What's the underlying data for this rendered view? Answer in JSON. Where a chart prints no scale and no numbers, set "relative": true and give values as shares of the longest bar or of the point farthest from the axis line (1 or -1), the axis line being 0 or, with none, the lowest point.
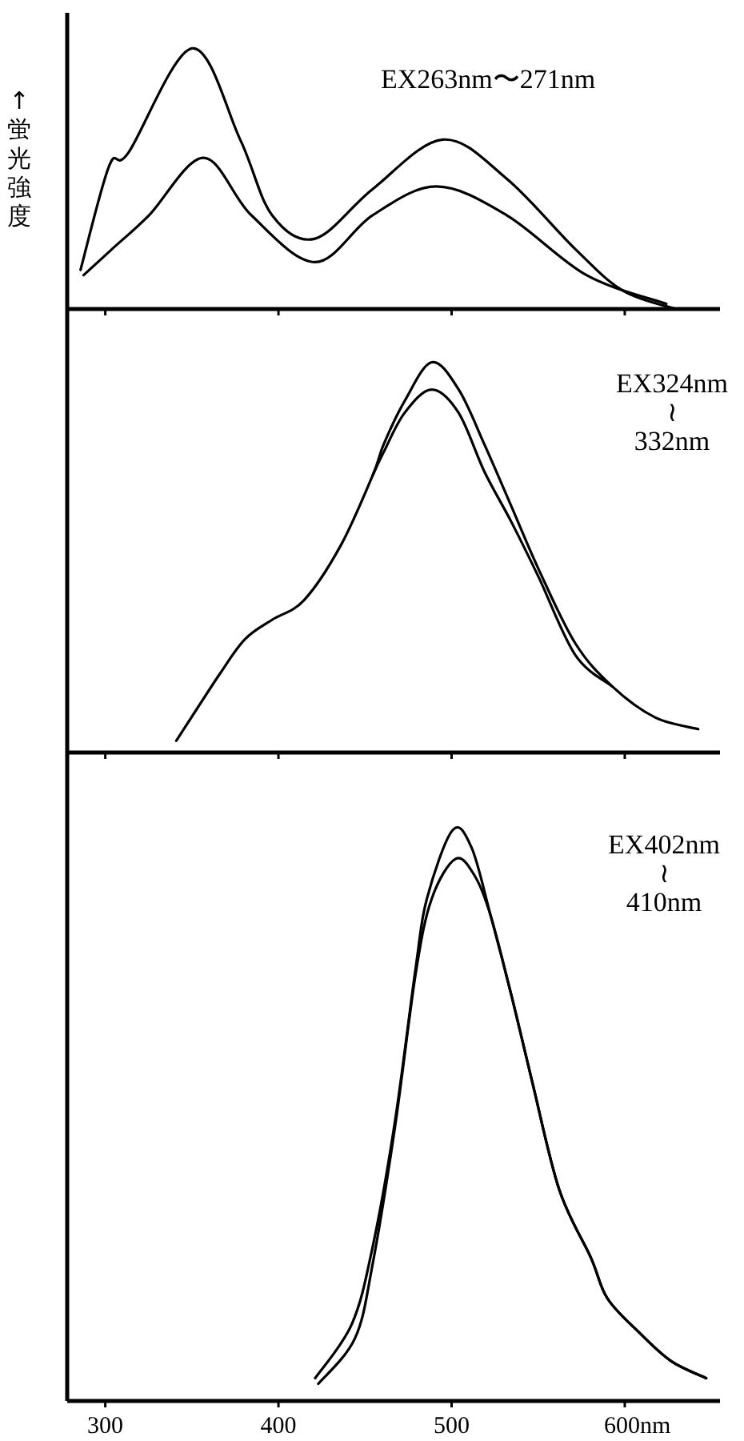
{
  "chart_data": [
    {
      "type": "line",
      "relative": true,
      "ylabel": "↑蛍光強度",
      "annotations": [
        "EX263nm〜271nm"
      ],
      "xlim": [
        278,
        655
      ],
      "xticks": [
        {
          "value": 300,
          "label": null
        },
        {
          "value": 400,
          "label": null
        },
        {
          "value": 500,
          "label": null
        },
        {
          "value": 600,
          "label": null
        }
      ],
      "tick_labels": false,
      "series": [
        {
          "color": "#000000",
          "x": [
            285.7,
            302.3,
            313.4,
            350.2,
            377.9,
            396.3,
            421.2,
            454.4,
            494.9,
            531.8,
            571.4,
            599,
            629.5
          ],
          "values": [
            0.15,
            0.55,
            0.6,
            1,
            0.65,
            0.36,
            0.27,
            0.46,
            0.65,
            0.5,
            0.23,
            0.07,
            0
          ]
        },
        {
          "color": "#000000",
          "x": [
            287.5,
            303.9,
            325.3,
            356.7,
            384.3,
            421.2,
            454.4,
            491.2,
            531.8,
            577.9,
            624
          ],
          "values": [
            0.13,
            0.23,
            0.36,
            0.58,
            0.36,
            0.18,
            0.36,
            0.47,
            0.36,
            0.13,
            0.02
          ]
        }
      ]
    },
    {
      "type": "line",
      "relative": true,
      "annotations": [
        "EX324nm\n≀\n332nm"
      ],
      "xlim": [
        278,
        655
      ],
      "xticks": [
        {
          "value": 300,
          "label": null
        },
        {
          "value": 400,
          "label": null
        },
        {
          "value": 500,
          "label": null
        },
        {
          "value": 600,
          "label": null
        }
      ],
      "tick_labels": false,
      "series": [
        {
          "color": "#000000",
          "x": [
            341,
            365.9,
            380.6,
            396.3,
            414.7,
            435.9,
            454.4,
            460.8,
            472.8,
            488.5,
            504.1,
            518.9,
            534.6,
            550.2,
            571.4,
            592.6,
            617.5,
            642.4
          ],
          "values": [
            0.03,
            0.2,
            0.29,
            0.34,
            0.39,
            0.53,
            0.71,
            0.79,
            0.9,
            1,
            0.93,
            0.79,
            0.63,
            0.47,
            0.28,
            0.17,
            0.09,
            0.06
          ]
        },
        {
          "color": "#000000",
          "x": [
            454.4,
            460.8,
            472.8,
            488.5,
            504.1,
            518.9,
            534.6,
            550.2,
            571.4,
            592.6
          ],
          "values": [
            0.71,
            0.77,
            0.87,
            0.93,
            0.87,
            0.72,
            0.59,
            0.45,
            0.25,
            0.17
          ]
        }
      ]
    },
    {
      "type": "line",
      "relative": true,
      "annotations": [
        "EX402nm\n≀\n410nm"
      ],
      "xlim": [
        278,
        655
      ],
      "xticks": [
        300,
        400,
        500,
        {
          "value": 600,
          "label": "600nm"
        }
      ],
      "tick_labels": "x",
      "series": [
        {
          "color": "#000000",
          "x": [
            421.2,
            442.4,
            454.4,
            467.3,
            479.3,
            485.7,
            500.5,
            511.5,
            522.6,
            534.6,
            546.5,
            562.2,
            580.6,
            589.9,
            608.3,
            626.7,
            647
          ],
          "values": [
            0.04,
            0.135,
            0.27,
            0.49,
            0.76,
            0.88,
            1,
            0.97,
            0.85,
            0.71,
            0.56,
            0.37,
            0.25,
            0.18,
            0.12,
            0.07,
            0.04
          ]
        },
        {
          "color": "#000000",
          "x": [
            423,
            444.2,
            454.4,
            467.3,
            479.3,
            488.5,
            502.3,
            513.4,
            522.6,
            534.6,
            546.5,
            562.2,
            580.6,
            589.9,
            608.3,
            626.7,
            647
          ],
          "values": [
            0.03,
            0.11,
            0.24,
            0.48,
            0.75,
            0.88,
            0.95,
            0.92,
            0.85,
            0.71,
            0.56,
            0.37,
            0.25,
            0.18,
            0.12,
            0.07,
            0.04
          ]
        }
      ]
    }
  ]
}
